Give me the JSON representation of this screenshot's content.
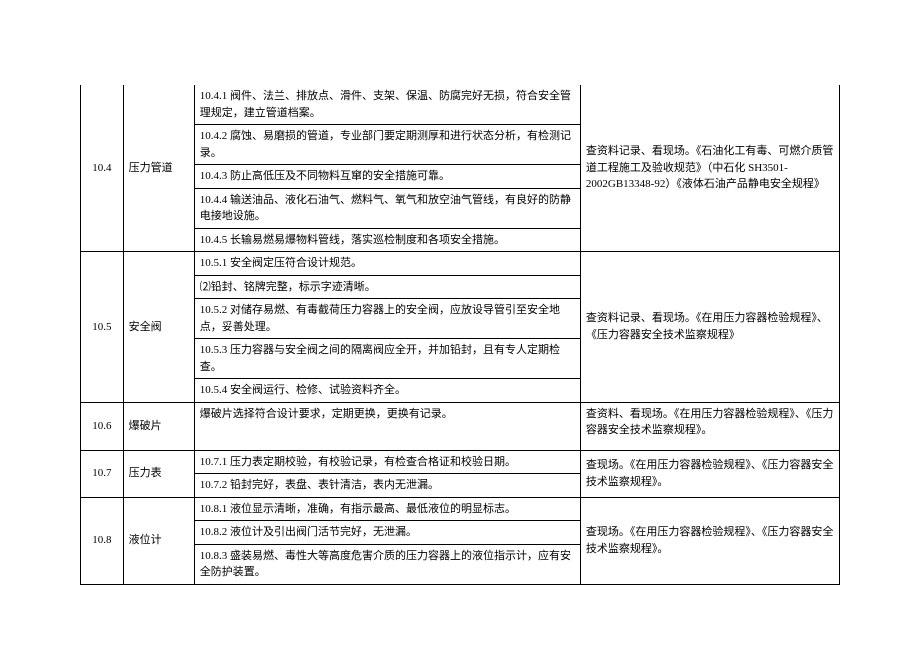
{
  "sections": [
    {
      "num": "10.4",
      "name": "压力管道",
      "items": [
        "10.4.1 阀件、法兰、排放点、滑件、支架、保温、防腐完好无损，符合安全管理规定，建立管道档案。",
        "10.4.2 腐蚀、易磨损的管道，专业部门要定期测厚和进行状态分析，有检测记录。",
        "10.4.3 防止高低压及不同物料互窜的安全措施可靠。",
        "10.4.4 输送油品、液化石油气、燃料气、氧气和放空油气管线，有良好的防静电接地设施。",
        "10.4.5 长输易燃易爆物料管线，落实巡检制度和各项安全措施。"
      ],
      "ref": "查资料记录、看现场。《石油化工有毒、可燃介质管道工程施工及验收规范》（中石化 SH3501-2002GB13348-92）《液体石油产品静电安全规程》"
    },
    {
      "num": "10.5",
      "name": "安全阀",
      "items": [
        "10.5.1 安全阀定压符合设计规范。",
        "⑵铅封、铭牌完整，标示字迹清晰。",
        "10.5.2 对储存易燃、有毒截荷压力容器上的安全阀，应放设导管引至安全地点，妥善处理。",
        "10.5.3 压力容器与安全阀之间的隔离阀应全开，并加铅封，且有专人定期检查。",
        "10.5.4 安全阀运行、检修、试验资料齐全。"
      ],
      "ref": "查资料记录、看现场。《在用压力容器检验规程》、《压力容器安全技术监察规程》"
    },
    {
      "num": "10.6",
      "name": "爆破片",
      "items": [
        "爆破片选择符合设计要求，定期更换，更换有记录。"
      ],
      "ref": "查资料、看现场。《在用压力容器检验规程》、《压力容器安全技术监察规程》。",
      "tall": true
    },
    {
      "num": "10.7",
      "name": "压力表",
      "items": [
        "10.7.1 压力表定期校验，有校验记录，有检查合格证和校验日期。",
        "10.7.2 铅封完好，表盘、表针清洁，表内无泄漏。"
      ],
      "ref": "查现场。《在用压力容器检验规程》、《压力容器安全技术监察规程》。"
    },
    {
      "num": "10.8",
      "name": "液位计",
      "items": [
        "10.8.1 液位显示清晰，准确，有指示最高、最低液位的明显标志。",
        "10.8.2 液位计及引出阀门活节完好，无泄漏。",
        "10.8.3 盛装易燃、毒性大等高度危害介质的压力容器上的液位指示计，应有安全防护装置。"
      ],
      "ref": "查现场。《在用压力容器检验规程》、《压力容器安全技术监察规程》。"
    }
  ]
}
